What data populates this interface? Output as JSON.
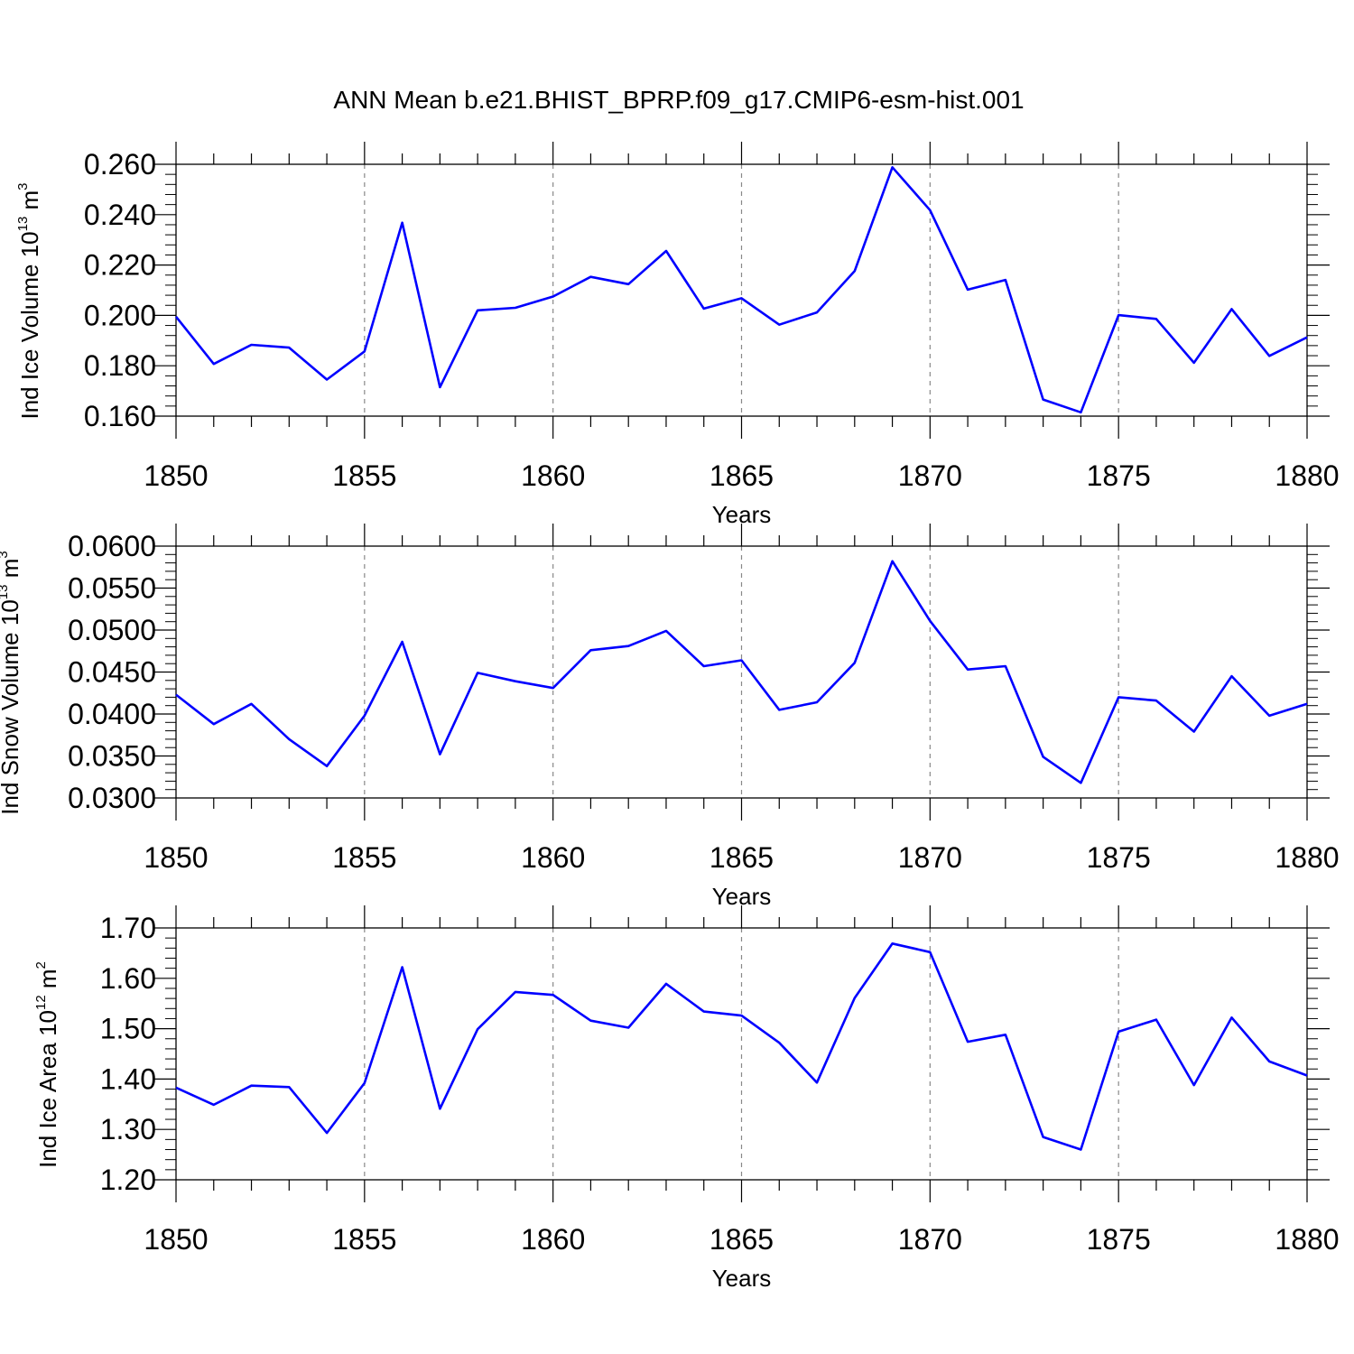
{
  "title": "ANN Mean b.e21.BHIST_BPRP.f09_g17.CMIP6-esm-hist.001",
  "colors": {
    "line": "#0000ff",
    "axis": "#000000",
    "grid": "#888888"
  },
  "chart_data": [
    {
      "type": "line",
      "ylabel": "Ind Ice Volume 10",
      "ylabel_exp": "13",
      "ylabel_unit": "m",
      "ylabel_unit_exp": "3",
      "xlabel": "Years",
      "xlim": [
        1850,
        1880
      ],
      "ylim": [
        0.16,
        0.26
      ],
      "yticks": [
        "0.160",
        "0.180",
        "0.200",
        "0.220",
        "0.240",
        "0.260"
      ],
      "ytick_values": [
        0.16,
        0.18,
        0.2,
        0.22,
        0.24,
        0.26
      ],
      "xticks": [
        "1850",
        "1855",
        "1860",
        "1865",
        "1870",
        "1875",
        "1880"
      ],
      "xtick_values": [
        1850,
        1855,
        1860,
        1865,
        1870,
        1875,
        1880
      ],
      "x": [
        1850,
        1851,
        1852,
        1853,
        1854,
        1855,
        1856,
        1857,
        1858,
        1859,
        1860,
        1861,
        1862,
        1863,
        1864,
        1865,
        1866,
        1867,
        1868,
        1869,
        1870,
        1871,
        1872,
        1873,
        1874,
        1875,
        1876,
        1877,
        1878,
        1879,
        1880
      ],
      "values": [
        0.1995,
        0.1807,
        0.1883,
        0.1872,
        0.1745,
        0.1857,
        0.2368,
        0.1715,
        0.202,
        0.203,
        0.2075,
        0.2153,
        0.2124,
        0.2256,
        0.2027,
        0.2068,
        0.1963,
        0.2012,
        0.2176,
        0.2588,
        0.2418,
        0.2102,
        0.2141,
        0.1666,
        0.1615,
        0.2001,
        0.1986,
        0.1812,
        0.2025,
        0.1839,
        0.1913
      ]
    },
    {
      "type": "line",
      "ylabel": "Ind Snow Volume 10",
      "ylabel_exp": "13",
      "ylabel_unit": "m",
      "ylabel_unit_exp": "3",
      "xlabel": "Years",
      "xlim": [
        1850,
        1880
      ],
      "ylim": [
        0.03,
        0.06
      ],
      "yticks": [
        "0.0300",
        "0.0350",
        "0.0400",
        "0.0450",
        "0.0500",
        "0.0550",
        "0.0600"
      ],
      "ytick_values": [
        0.03,
        0.035,
        0.04,
        0.045,
        0.05,
        0.055,
        0.06
      ],
      "xticks": [
        "1850",
        "1855",
        "1860",
        "1865",
        "1870",
        "1875",
        "1880"
      ],
      "xtick_values": [
        1850,
        1855,
        1860,
        1865,
        1870,
        1875,
        1880
      ],
      "x": [
        1850,
        1851,
        1852,
        1853,
        1854,
        1855,
        1856,
        1857,
        1858,
        1859,
        1860,
        1861,
        1862,
        1863,
        1864,
        1865,
        1866,
        1867,
        1868,
        1869,
        1870,
        1871,
        1872,
        1873,
        1874,
        1875,
        1876,
        1877,
        1878,
        1879,
        1880
      ],
      "values": [
        0.0423,
        0.0388,
        0.0412,
        0.037,
        0.0338,
        0.0398,
        0.0486,
        0.0352,
        0.0449,
        0.0439,
        0.0431,
        0.0476,
        0.0481,
        0.0499,
        0.0457,
        0.0464,
        0.0405,
        0.0414,
        0.0461,
        0.0582,
        0.0511,
        0.0453,
        0.0457,
        0.0349,
        0.0318,
        0.042,
        0.0416,
        0.0379,
        0.0445,
        0.0398,
        0.0412
      ]
    },
    {
      "type": "line",
      "ylabel": "Ind Ice Area 10",
      "ylabel_exp": "12",
      "ylabel_unit": "m",
      "ylabel_unit_exp": "2",
      "xlabel": "Years",
      "xlim": [
        1850,
        1880
      ],
      "ylim": [
        1.2,
        1.7
      ],
      "yticks": [
        "1.20",
        "1.30",
        "1.40",
        "1.50",
        "1.60",
        "1.70"
      ],
      "ytick_values": [
        1.2,
        1.3,
        1.4,
        1.5,
        1.6,
        1.7
      ],
      "xticks": [
        "1850",
        "1855",
        "1860",
        "1865",
        "1870",
        "1875",
        "1880"
      ],
      "xtick_values": [
        1850,
        1855,
        1860,
        1865,
        1870,
        1875,
        1880
      ],
      "x": [
        1850,
        1851,
        1852,
        1853,
        1854,
        1855,
        1856,
        1857,
        1858,
        1859,
        1860,
        1861,
        1862,
        1863,
        1864,
        1865,
        1866,
        1867,
        1868,
        1869,
        1870,
        1871,
        1872,
        1873,
        1874,
        1875,
        1876,
        1877,
        1878,
        1879,
        1880
      ],
      "values": [
        1.383,
        1.349,
        1.387,
        1.384,
        1.293,
        1.392,
        1.622,
        1.341,
        1.499,
        1.573,
        1.567,
        1.516,
        1.502,
        1.589,
        1.534,
        1.526,
        1.472,
        1.393,
        1.561,
        1.669,
        1.652,
        1.474,
        1.488,
        1.285,
        1.26,
        1.494,
        1.518,
        1.388,
        1.522,
        1.435,
        1.407
      ]
    }
  ]
}
